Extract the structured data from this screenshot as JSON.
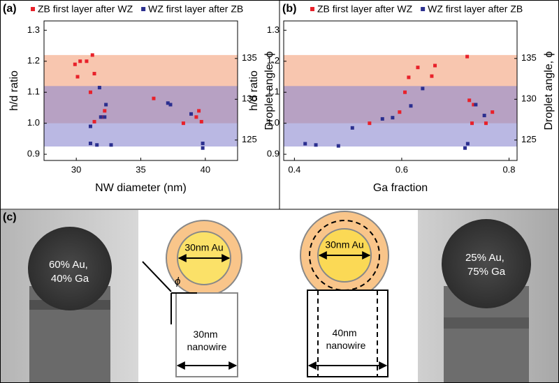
{
  "chart_data": [
    {
      "type": "scatter",
      "panel_label": "(a)",
      "x_label": "NW diameter (nm)",
      "y_label": "h/d ratio",
      "y2_label": "Droplet angle, ϕ",
      "legend": "top",
      "xlim": [
        27.5,
        42.5
      ],
      "xticks": [
        30,
        35,
        40
      ],
      "ylim": [
        0.88,
        1.33
      ],
      "yticks": [
        0.9,
        {
          "value": 1,
          "label": "1.0"
        },
        1.1,
        1.2,
        1.3
      ],
      "y2lim": [
        122.5,
        139.6
      ],
      "y2ticks": [
        125,
        130,
        135
      ],
      "shaded_ranges": [
        {
          "range": [
            1.0,
            1.22
          ],
          "color": "#f4a07a"
        },
        {
          "range": [
            0.925,
            1.12
          ],
          "color": "#8c89d0"
        }
      ],
      "series": [
        {
          "name": "ZB first layer after WZ",
          "color": "#e8212a",
          "x": [
            29.9,
            30.3,
            30.8,
            31.25,
            30.1,
            31.4,
            31.1,
            32.2,
            32,
            31.4,
            36,
            39.5,
            39.3,
            39.7,
            38.3
          ],
          "values": [
            1.19,
            1.2,
            1.2,
            1.22,
            1.15,
            1.16,
            1.1,
            1.04,
            1.02,
            1.005,
            1.08,
            1.04,
            1.02,
            1.005,
            1.0
          ]
        },
        {
          "name": "WZ first layer after ZB",
          "color": "#2b2f8f",
          "x": [
            31.8,
            32.3,
            32.2,
            31.9,
            31.1,
            31.1,
            31.6,
            32.7,
            37.1,
            37.3,
            38.9,
            39.8,
            39.8
          ],
          "values": [
            1.115,
            1.06,
            1.02,
            1.02,
            0.99,
            0.935,
            0.93,
            0.93,
            1.065,
            1.06,
            1.03,
            0.935,
            0.92
          ]
        }
      ]
    },
    {
      "type": "scatter",
      "panel_label": "(b)",
      "x_label": "Ga fraction",
      "y_label": "h/d ratio",
      "y2_label": "Droplet angle, ϕ",
      "legend": "top",
      "xlim": [
        0.38,
        0.815
      ],
      "xticks": [
        0.4,
        0.6,
        0.8
      ],
      "ylim": [
        0.88,
        1.33
      ],
      "yticks": [
        0.9,
        {
          "value": 1,
          "label": "1.0"
        },
        1.1,
        1.2,
        1.3
      ],
      "y2lim": [
        122.5,
        139.6
      ],
      "y2ticks": [
        125,
        130,
        135
      ],
      "shaded_ranges": [
        {
          "range": [
            1.0,
            1.22
          ],
          "color": "#f4a07a"
        },
        {
          "range": [
            0.925,
            1.12
          ],
          "color": "#8c89d0"
        }
      ],
      "series": [
        {
          "name": "ZB first layer after WZ",
          "color": "#e8212a",
          "x": [
            0.722,
            0.662,
            0.63,
            0.613,
            0.656,
            0.606,
            0.596,
            0.54,
            0.726,
            0.734,
            0.731,
            0.769,
            0.757
          ],
          "values": [
            1.215,
            1.186,
            1.18,
            1.148,
            1.152,
            1.1,
            1.036,
            1.0,
            1.074,
            1.06,
            1.0,
            1.036,
            1.0
          ]
        },
        {
          "name": "WZ first layer after ZB",
          "color": "#2b2f8f",
          "x": [
            0.639,
            0.617,
            0.583,
            0.564,
            0.508,
            0.42,
            0.44,
            0.482,
            0.738,
            0.754,
            0.723,
            0.718
          ],
          "values": [
            1.112,
            1.056,
            1.018,
            1.014,
            0.985,
            0.934,
            0.93,
            0.927,
            1.06,
            1.025,
            0.934,
            0.92
          ]
        }
      ]
    }
  ],
  "panel_c": {
    "panel_label": "(c)",
    "left_photo_label": [
      "60% Au,",
      "40% Ga"
    ],
    "left_diagram": {
      "droplet_label": "30nm Au",
      "angle_label": "ϕ",
      "wire_label": [
        "30nm",
        "nanowire"
      ]
    },
    "right_diagram": {
      "droplet_label": "30nm Au",
      "wire_label": [
        "40nm",
        "nanowire"
      ]
    },
    "right_photo_label": [
      "25% Au,",
      "75% Ga"
    ]
  }
}
